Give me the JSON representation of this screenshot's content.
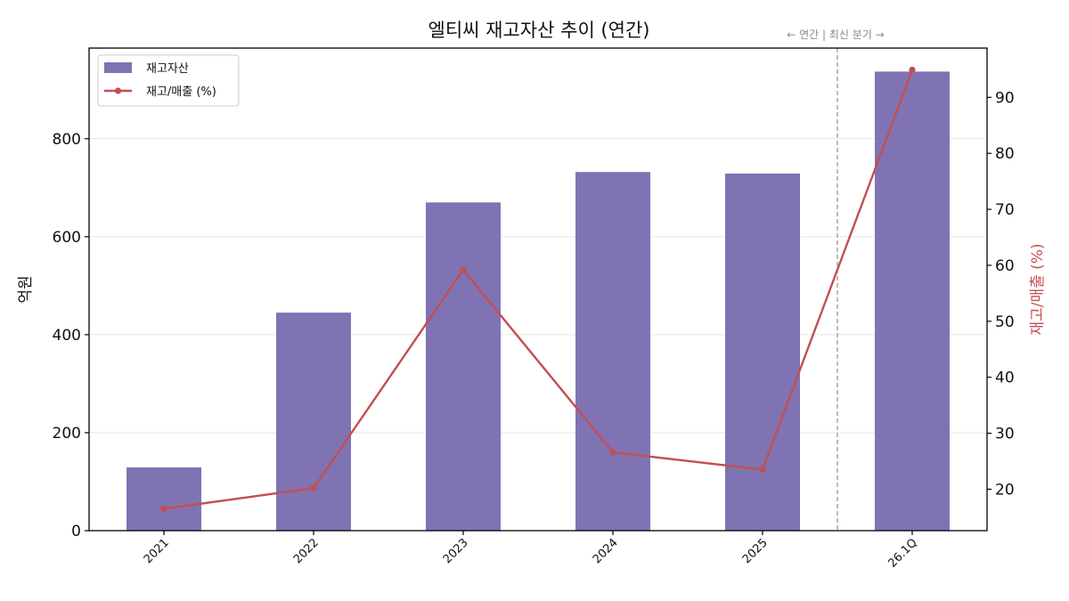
{
  "chart_data": {
    "type": "bar+line",
    "title": "엘티씨 재고자산 추이 (연간)",
    "categories": [
      "2021",
      "2022",
      "2023",
      "2024",
      "2025",
      "26.1Q"
    ],
    "series": [
      {
        "name": "재고자산",
        "type": "bar",
        "axis": "left",
        "color": "#7f73b3",
        "values": [
          129,
          445,
          670,
          732,
          729,
          937
        ]
      },
      {
        "name": "재고/매출 (%)",
        "type": "line",
        "axis": "right",
        "color": "#c44e52",
        "values": [
          16.5,
          20.2,
          59.2,
          26.6,
          23.5,
          94.9
        ]
      }
    ],
    "ylabel_left": "억원",
    "ylabel_right": "재고/매출 (%)",
    "ylim_left": [
      0,
      985
    ],
    "ylim_right": [
      12.6,
      98.8
    ],
    "yticks_left": [
      0,
      200,
      400,
      600,
      800
    ],
    "yticks_right": [
      20,
      30,
      40,
      50,
      60,
      70,
      80,
      90
    ],
    "grid": "horizontal",
    "legend": "top-left",
    "annotation": "← 연간 | 최신 분기 →",
    "divider_between": [
      "2025",
      "26.1Q"
    ]
  }
}
